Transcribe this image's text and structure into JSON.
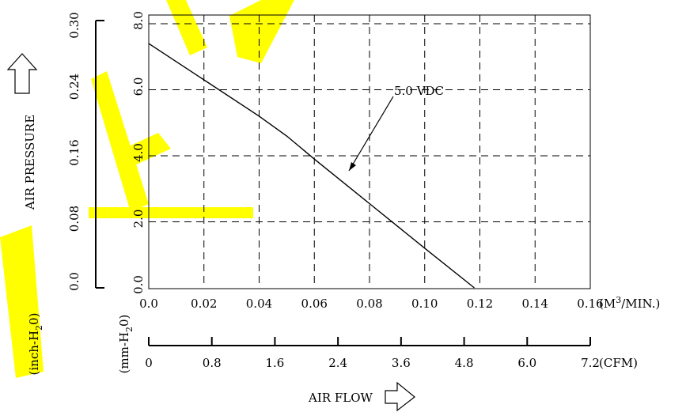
{
  "chart_data": {
    "type": "line",
    "series": [
      {
        "name": "5.0 VDC",
        "x": [
          0.0,
          0.02,
          0.04,
          0.05,
          0.06,
          0.08,
          0.1,
          0.118
        ],
        "y": [
          7.4,
          6.3,
          5.2,
          4.6,
          3.9,
          2.55,
          1.2,
          0.0
        ]
      }
    ],
    "xlim": [
      0,
      0.16
    ],
    "ylim": [
      0,
      8.0
    ],
    "grid": true,
    "x_ticks": [
      "0.0",
      "0.02",
      "0.04",
      "0.06",
      "0.08",
      "0.10",
      "0.12",
      "0.14",
      "0.16"
    ],
    "x_unit_pre": "(M",
    "x_unit_sup": "3",
    "x_unit_post": "/MIN.)",
    "cfm_ticks": [
      "0",
      "0.8",
      "1.6",
      "2.4",
      "3.6",
      "4.8",
      "6.0",
      "7.2"
    ],
    "cfm_unit": "(CFM)",
    "mm_ticks": [
      "0.0",
      "2.0",
      "4.0",
      "6.0",
      "8.0"
    ],
    "mm_unit_pre": "(mm-H",
    "mm_unit_sub": "2",
    "mm_unit_post": "0)",
    "inch_ticks": [
      "0.0",
      "0.08",
      "0.16",
      "0.24",
      "0.30"
    ],
    "inch_unit_pre": "(inch-H",
    "inch_unit_sub": "2",
    "inch_unit_post": "0)",
    "ylabel": "AIR PRESSURE",
    "xlabel": "AIR FLOW",
    "annotation": "5.0 VDC"
  },
  "colors": {
    "watermark": "#ffff00",
    "ink": "#000000"
  }
}
